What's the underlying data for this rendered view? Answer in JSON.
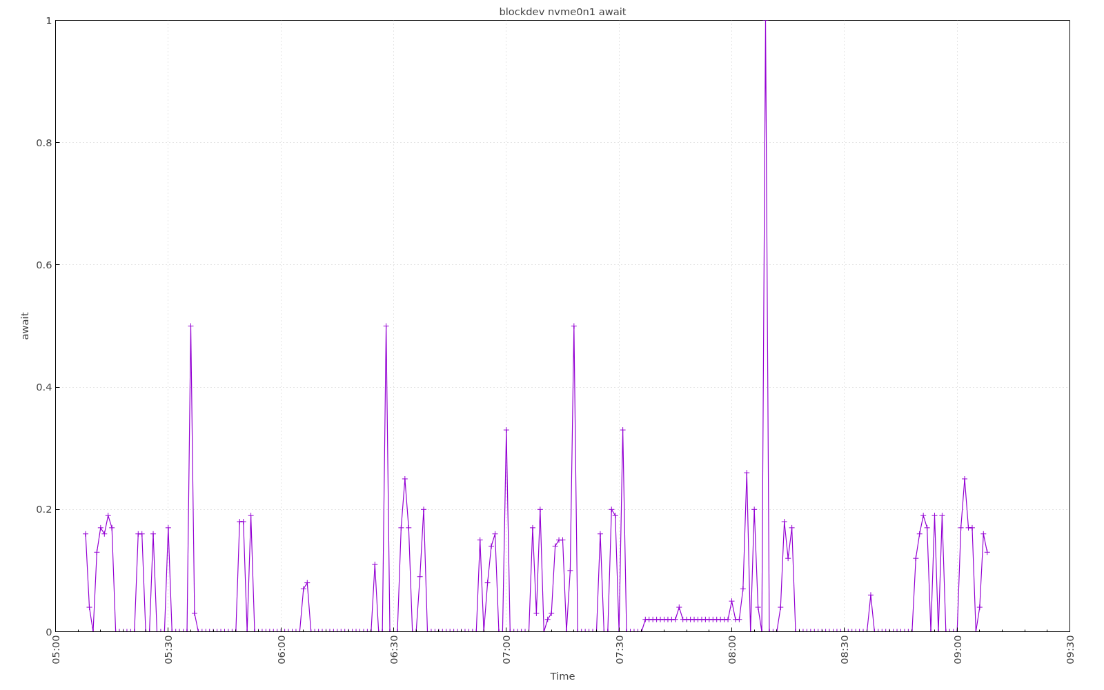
{
  "chart_data": {
    "type": "line",
    "title": "blockdev nvme0n1 await",
    "xlabel": "Time",
    "ylabel": "await",
    "x": [
      5.1333,
      5.15,
      5.1667,
      5.1833,
      5.2,
      5.2167,
      5.2333,
      5.25,
      5.2667,
      5.2833,
      5.3,
      5.3167,
      5.3333,
      5.35,
      5.3667,
      5.3833,
      5.4,
      5.4167,
      5.4333,
      5.45,
      5.4667,
      5.4833,
      5.5,
      5.5167,
      5.5333,
      5.55,
      5.5667,
      5.5833,
      5.6,
      5.6167,
      5.6333,
      5.65,
      5.6667,
      5.6833,
      5.7,
      5.7167,
      5.7333,
      5.75,
      5.7667,
      5.7833,
      5.8,
      5.8167,
      5.8333,
      5.85,
      5.8667,
      5.8833,
      5.9,
      5.9167,
      5.9333,
      5.95,
      5.9667,
      5.9833,
      6.0,
      6.0167,
      6.0333,
      6.05,
      6.0667,
      6.0833,
      6.1,
      6.1167,
      6.1333,
      6.15,
      6.1667,
      6.1833,
      6.2,
      6.2167,
      6.2333,
      6.25,
      6.2667,
      6.2833,
      6.3,
      6.3167,
      6.3333,
      6.35,
      6.3667,
      6.3833,
      6.4,
      6.4167,
      6.4333,
      6.45,
      6.4667,
      6.4833,
      6.5,
      6.5167,
      6.5333,
      6.55,
      6.5667,
      6.5833,
      6.6,
      6.6167,
      6.6333,
      6.65,
      6.6667,
      6.6833,
      6.7,
      6.7167,
      6.7333,
      6.75,
      6.7667,
      6.7833,
      6.8,
      6.8167,
      6.8333,
      6.85,
      6.8667,
      6.8833,
      6.9,
      6.9167,
      6.9333,
      6.95,
      6.9667,
      6.9833,
      7.0,
      7.0167,
      7.0333,
      7.05,
      7.0667,
      7.0833,
      7.1,
      7.1167,
      7.1333,
      7.15,
      7.1667,
      7.1833,
      7.2,
      7.2167,
      7.2333,
      7.25,
      7.2667,
      7.2833,
      7.3,
      7.3167,
      7.3333,
      7.35,
      7.3667,
      7.3833,
      7.4,
      7.4167,
      7.4333,
      7.45,
      7.4667,
      7.4833,
      7.5,
      7.5167,
      7.5333,
      7.55,
      7.5667,
      7.5833,
      7.6,
      7.6167,
      7.6333,
      7.65,
      7.6667,
      7.6833,
      7.7,
      7.7167,
      7.7333,
      7.75,
      7.7667,
      7.7833,
      7.8,
      7.8167,
      7.8333,
      7.85,
      7.8667,
      7.8833,
      7.9,
      7.9167,
      7.9333,
      7.95,
      7.9667,
      7.9833,
      8.0,
      8.0167,
      8.0333,
      8.05,
      8.0667,
      8.0833,
      8.1,
      8.1167,
      8.1333,
      8.15,
      8.1667,
      8.1833,
      8.2,
      8.2167,
      8.2333,
      8.25,
      8.2667,
      8.2833,
      8.3,
      8.3167,
      8.3333,
      8.35,
      8.3667,
      8.3833,
      8.4,
      8.4167,
      8.4333,
      8.45,
      8.4667,
      8.4833,
      8.5,
      8.5167,
      8.5333,
      8.55,
      8.5667,
      8.5833,
      8.6,
      8.6167,
      8.6333,
      8.65,
      8.6667,
      8.6833,
      8.7,
      8.7167,
      8.7333,
      8.75,
      8.7667,
      8.7833,
      8.8,
      8.8167,
      8.8333,
      8.85,
      8.8667,
      8.8833,
      8.9,
      8.9167,
      8.9333,
      8.95,
      8.9667,
      8.9833,
      9.0,
      9.0167,
      9.0333,
      9.05,
      9.0667,
      9.0833,
      9.1,
      9.1167,
      9.1333
    ],
    "series": [
      {
        "color": "#9400d3",
        "values": [
          0.16,
          0.04,
          0,
          0.13,
          0.17,
          0.16,
          0.19,
          0.17,
          0,
          0,
          0,
          0,
          0,
          0,
          0.16,
          0.16,
          0,
          0,
          0.16,
          0,
          0,
          0,
          0.17,
          0,
          0,
          0,
          0,
          0,
          0.5,
          0.03,
          0,
          0,
          0,
          0,
          0,
          0,
          0,
          0,
          0,
          0,
          0,
          0.18,
          0.18,
          0,
          0.19,
          0,
          0,
          0,
          0,
          0,
          0,
          0,
          0,
          0,
          0,
          0,
          0,
          0,
          0.07,
          0.08,
          0,
          0,
          0,
          0,
          0,
          0,
          0,
          0,
          0,
          0,
          0,
          0,
          0,
          0,
          0,
          0,
          0,
          0.11,
          0,
          0,
          0.5,
          0,
          0,
          0,
          0.17,
          0.25,
          0.17,
          0,
          0,
          0.09,
          0.2,
          0,
          0,
          0,
          0,
          0,
          0,
          0,
          0,
          0,
          0,
          0,
          0,
          0,
          0,
          0.15,
          0,
          0.08,
          0.14,
          0.16,
          0,
          0,
          0.33,
          0,
          0,
          0,
          0,
          0,
          0,
          0.17,
          0.03,
          0.2,
          0,
          0.02,
          0.03,
          0.14,
          0.15,
          0.15,
          0,
          0.1,
          0.5,
          0,
          0,
          0,
          0,
          0,
          0,
          0.16,
          0,
          0,
          0.2,
          0.19,
          0,
          0.33,
          0,
          0,
          0,
          0,
          0,
          0.02,
          0.02,
          0.02,
          0.02,
          0.02,
          0.02,
          0.02,
          0.02,
          0.02,
          0.04,
          0.02,
          0.02,
          0.02,
          0.02,
          0.02,
          0.02,
          0.02,
          0.02,
          0.02,
          0.02,
          0.02,
          0.02,
          0.02,
          0.05,
          0.02,
          0.02,
          0.07,
          0.26,
          0,
          0.2,
          0.04,
          0,
          1,
          0,
          0,
          0,
          0.04,
          0.18,
          0.12,
          0.17,
          0,
          0,
          0,
          0,
          0,
          0,
          0,
          0,
          0,
          0,
          0,
          0,
          0,
          0,
          0,
          0,
          0,
          0,
          0,
          0,
          0.06,
          0,
          0,
          0,
          0,
          0,
          0,
          0,
          0,
          0,
          0,
          0,
          0.12,
          0.16,
          0.19,
          0.17,
          0,
          0.19,
          0,
          0.19,
          0,
          0,
          0,
          0,
          0.17,
          0.25,
          0.17,
          0.17,
          0,
          0.04,
          0.16,
          0.13
        ]
      }
    ],
    "xlim": [
      5,
      9.5
    ],
    "ylim": [
      0,
      1
    ],
    "xticks": [
      {
        "value": 5,
        "label": "05:00"
      },
      {
        "value": 5.5,
        "label": "05:30"
      },
      {
        "value": 6,
        "label": "06:00"
      },
      {
        "value": 6.5,
        "label": "06:30"
      },
      {
        "value": 7,
        "label": "07:00"
      },
      {
        "value": 7.5,
        "label": "07:30"
      },
      {
        "value": 8,
        "label": "08:00"
      },
      {
        "value": 8.5,
        "label": "08:30"
      },
      {
        "value": 9,
        "label": "09:00"
      },
      {
        "value": 9.5,
        "label": "09:30"
      }
    ],
    "yticks": [
      0,
      0.2,
      0.4,
      0.6,
      0.8,
      1
    ],
    "grid": true,
    "marker": "cross",
    "line_style": "solid"
  }
}
